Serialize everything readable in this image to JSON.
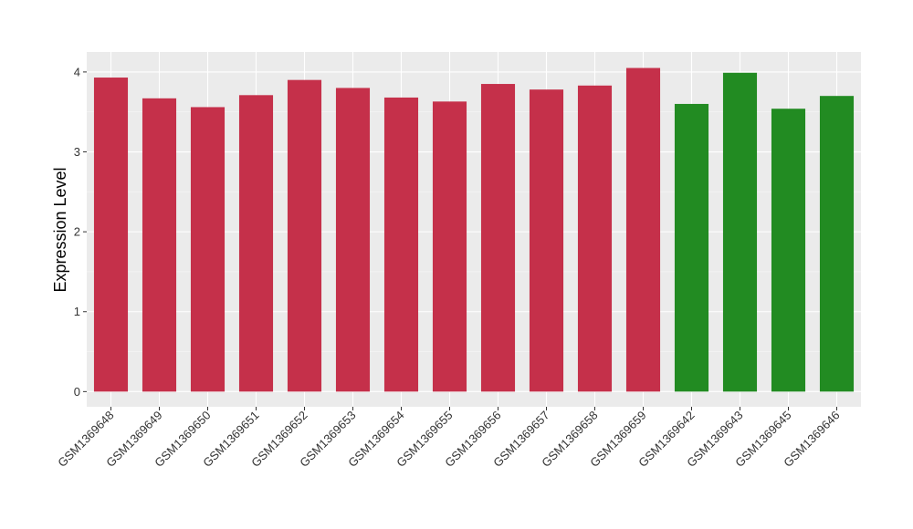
{
  "chart_data": {
    "type": "bar",
    "ylabel": "Expression Level",
    "xlabel": "",
    "categories": [
      "GSM1369648",
      "GSM1369649",
      "GSM1369650",
      "GSM1369651",
      "GSM1369652",
      "GSM1369653",
      "GSM1369654",
      "GSM1369655",
      "GSM1369656",
      "GSM1369657",
      "GSM1369658",
      "GSM1369659",
      "GSM1369642",
      "GSM1369643",
      "GSM1369645",
      "GSM1369646"
    ],
    "values": [
      3.93,
      3.67,
      3.56,
      3.71,
      3.9,
      3.8,
      3.68,
      3.63,
      3.85,
      3.78,
      3.83,
      4.05,
      3.6,
      3.99,
      3.54,
      3.7
    ],
    "group": [
      "a",
      "a",
      "a",
      "a",
      "a",
      "a",
      "a",
      "a",
      "a",
      "a",
      "a",
      "a",
      "b",
      "b",
      "b",
      "b"
    ],
    "colors": {
      "a": "#c5304a",
      "b": "#228b22"
    },
    "ylim": [
      -0.19,
      4.25
    ],
    "yticks": [
      0,
      1,
      2,
      3,
      4
    ],
    "grid": true,
    "panel_background": "#ebebeb"
  }
}
